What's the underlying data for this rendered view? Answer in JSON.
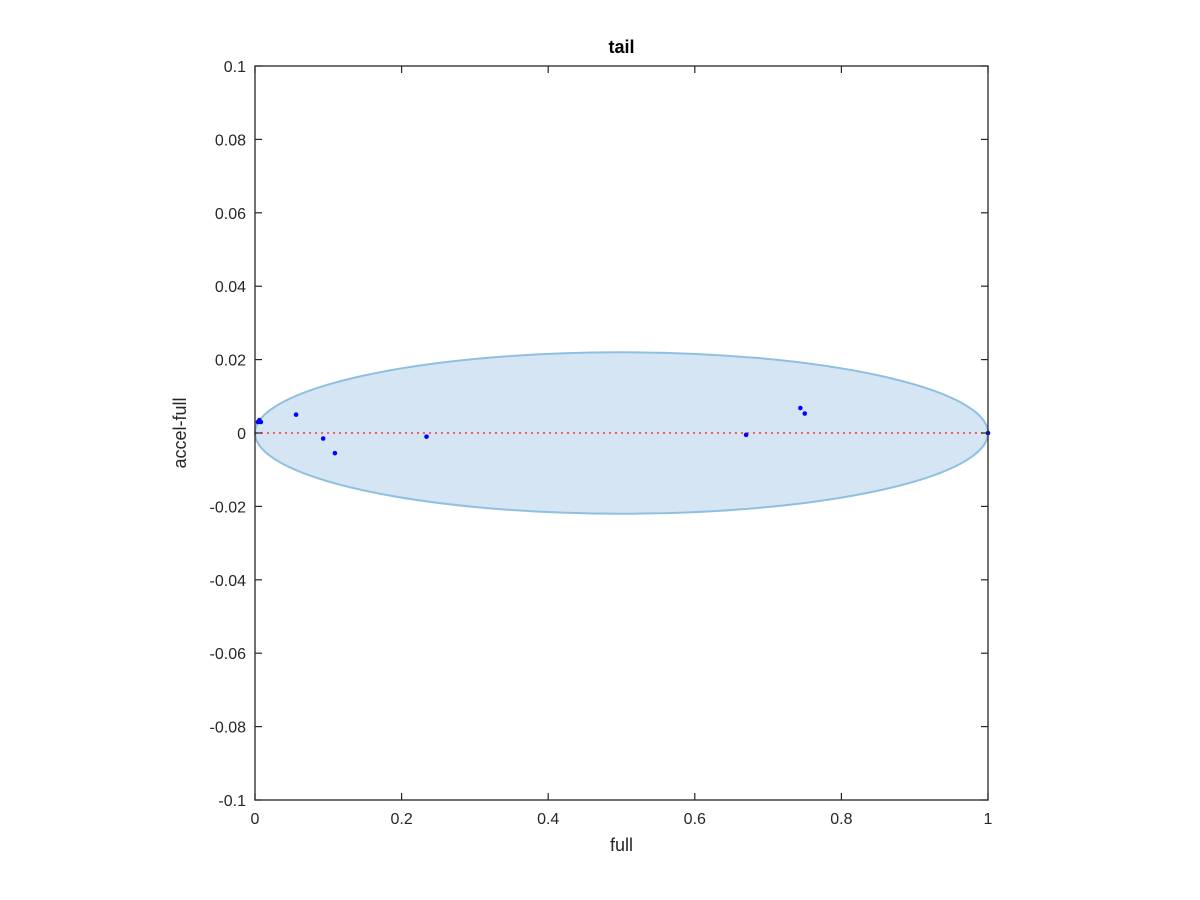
{
  "chart_data": {
    "type": "scatter",
    "title": "tail",
    "xlabel": "full",
    "ylabel": "accel-full",
    "xlim": [
      0,
      1
    ],
    "ylim": [
      -0.1,
      0.1
    ],
    "xticks": [
      0,
      0.2,
      0.4,
      0.6,
      0.8,
      1
    ],
    "xtick_labels": [
      "0",
      "0.2",
      "0.4",
      "0.6",
      "0.8",
      "1"
    ],
    "yticks": [
      0.1,
      0.08,
      0.06,
      0.04,
      0.02,
      0,
      -0.02,
      -0.04,
      -0.06,
      -0.08,
      -0.1
    ],
    "ytick_labels": [
      "0.1",
      "0.08",
      "0.06",
      "0.04",
      "0.02",
      "0",
      "-0.02",
      "-0.04",
      "-0.06",
      "-0.08",
      "-0.1"
    ],
    "grid": false,
    "points": [
      {
        "x": 0.004,
        "y": 0.003
      },
      {
        "x": 0.006,
        "y": 0.0035
      },
      {
        "x": 0.008,
        "y": 0.003
      },
      {
        "x": 0.056,
        "y": 0.005
      },
      {
        "x": 0.093,
        "y": -0.0015
      },
      {
        "x": 0.109,
        "y": -0.0055
      },
      {
        "x": 0.234,
        "y": -0.001
      },
      {
        "x": 0.67,
        "y": -0.0005
      },
      {
        "x": 0.744,
        "y": 0.0068
      },
      {
        "x": 0.75,
        "y": 0.0053
      },
      {
        "x": 1.0,
        "y": 0.0
      }
    ],
    "reference_line": {
      "y": 0,
      "style": "dotted",
      "color": "#ff3333"
    },
    "ellipse": {
      "center_x": 0.5,
      "center_y": 0.0,
      "semi_axis_x": 0.5,
      "semi_axis_y": 0.022,
      "fill": "#d5e5f3",
      "stroke": "#8fc0e0"
    },
    "colors": {
      "points": "#0000ff",
      "axes": "#262626"
    }
  }
}
